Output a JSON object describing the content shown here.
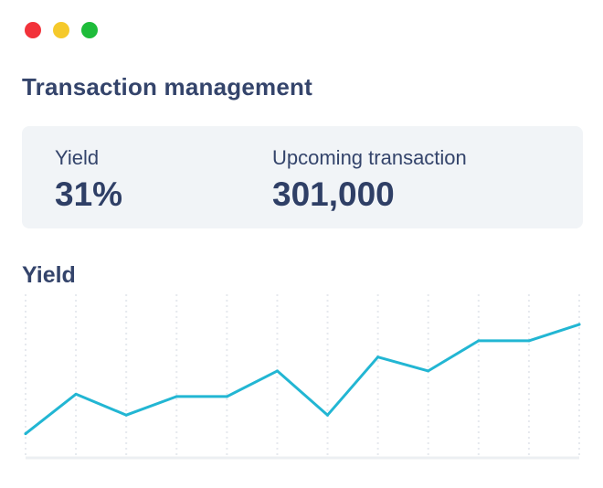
{
  "window": {
    "controls": [
      {
        "name": "close",
        "color": "#f2323a"
      },
      {
        "name": "minimize",
        "color": "#f5c92b"
      },
      {
        "name": "maximize",
        "color": "#1ebc3a"
      }
    ]
  },
  "page_title": "Transaction management",
  "stats": {
    "yield_label": "Yield",
    "yield_value": "31%",
    "upcoming_label": "Upcoming transaction",
    "upcoming_value": "301,000"
  },
  "chart_title": "Yield",
  "colors": {
    "line": "#22b6d3",
    "grid": "#e6e9ee",
    "baseline": "#eceff2"
  },
  "chart_data": {
    "type": "line",
    "title": "Yield",
    "series": [
      {
        "values": [
          10,
          27,
          18,
          26,
          26,
          37,
          18,
          43,
          37,
          50,
          50,
          57
        ]
      }
    ],
    "ylim": [
      0,
      70
    ],
    "grid": true
  }
}
